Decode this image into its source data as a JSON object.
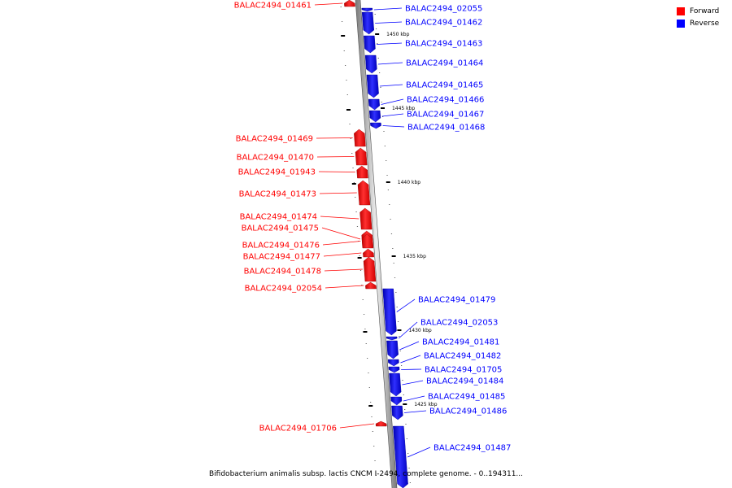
{
  "legend": {
    "forward_label": "Forward",
    "reverse_label": "Reverse",
    "forward_color": "#ff0000",
    "reverse_color": "#0000ff"
  },
  "caption": "Bifidobacterium animalis subsp. lactis CNCM I-2494, complete genome. - 0..194311...",
  "ticks": [
    {
      "label": "1450 kbp"
    },
    {
      "label": "1445 kbp"
    },
    {
      "label": "1440 kbp"
    },
    {
      "label": "1435 kbp"
    },
    {
      "label": "1430 kbp"
    },
    {
      "label": "1425 kbp"
    }
  ],
  "genes": [
    {
      "label": "BALAC2494_01461",
      "strand": "forward"
    },
    {
      "label": "BALAC2494_02055",
      "strand": "reverse"
    },
    {
      "label": "BALAC2494_01462",
      "strand": "reverse"
    },
    {
      "label": "BALAC2494_01463",
      "strand": "reverse"
    },
    {
      "label": "BALAC2494_01464",
      "strand": "reverse"
    },
    {
      "label": "BALAC2494_01465",
      "strand": "reverse"
    },
    {
      "label": "BALAC2494_01466",
      "strand": "reverse"
    },
    {
      "label": "BALAC2494_01467",
      "strand": "reverse"
    },
    {
      "label": "BALAC2494_01468",
      "strand": "reverse"
    },
    {
      "label": "BALAC2494_01469",
      "strand": "forward"
    },
    {
      "label": "BALAC2494_01470",
      "strand": "forward"
    },
    {
      "label": "BALAC2494_01943",
      "strand": "forward"
    },
    {
      "label": "BALAC2494_01473",
      "strand": "forward"
    },
    {
      "label": "BALAC2494_01474",
      "strand": "forward"
    },
    {
      "label": "BALAC2494_01475",
      "strand": "forward"
    },
    {
      "label": "BALAC2494_01476",
      "strand": "forward"
    },
    {
      "label": "BALAC2494_01477",
      "strand": "forward"
    },
    {
      "label": "BALAC2494_01478",
      "strand": "forward"
    },
    {
      "label": "BALAC2494_02054",
      "strand": "forward"
    },
    {
      "label": "BALAC2494_01479",
      "strand": "reverse"
    },
    {
      "label": "BALAC2494_02053",
      "strand": "reverse"
    },
    {
      "label": "BALAC2494_01481",
      "strand": "reverse"
    },
    {
      "label": "BALAC2494_01482",
      "strand": "reverse"
    },
    {
      "label": "BALAC2494_01705",
      "strand": "reverse"
    },
    {
      "label": "BALAC2494_01484",
      "strand": "reverse"
    },
    {
      "label": "BALAC2494_01485",
      "strand": "reverse"
    },
    {
      "label": "BALAC2494_01486",
      "strand": "reverse"
    },
    {
      "label": "BALAC2494_01706",
      "strand": "forward"
    },
    {
      "label": "BALAC2494_01487",
      "strand": "reverse"
    }
  ]
}
